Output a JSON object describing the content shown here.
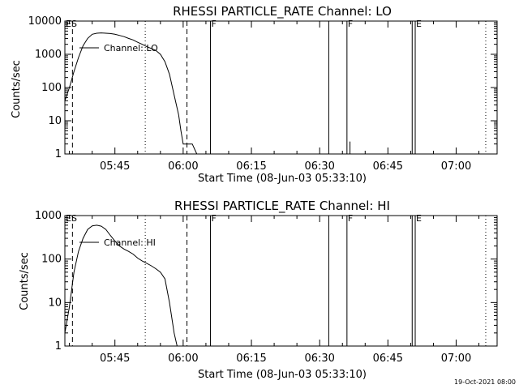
{
  "chart_data": [
    {
      "type": "line",
      "title": "RHESSI PARTICLE_RATE Channel: LO",
      "xlabel": "Start Time (08-Jun-03 05:33:10)",
      "ylabel": "Counts/sec",
      "yscale": "log",
      "xlim": [
        "05:34:00",
        "07:09:00"
      ],
      "ylim": [
        1,
        10000
      ],
      "x_ticks": [
        "05:45",
        "06:00",
        "06:15",
        "06:30",
        "06:45",
        "07:00"
      ],
      "y_ticks": [
        "1",
        "10",
        "100",
        "1000",
        "10000"
      ],
      "series": [
        {
          "name": "Channel: LO",
          "x": [
            "05:34:00",
            "05:35:00",
            "05:36:00",
            "05:37:00",
            "05:38:00",
            "05:39:00",
            "05:40:00",
            "05:41:00",
            "05:42:00",
            "05:43:00",
            "05:44:00",
            "05:45:00",
            "05:46:00",
            "05:47:00",
            "05:48:00",
            "05:49:00",
            "05:50:00",
            "05:51:00",
            "05:52:00",
            "05:53:00",
            "05:54:00",
            "05:55:00",
            "05:56:00",
            "05:57:00",
            "05:58:00",
            "05:59:00",
            "05:59:30",
            "06:00:00",
            "06:01:00",
            "06:02:00",
            "06:03:00"
          ],
          "y": [
            40,
            100,
            300,
            800,
            1800,
            3000,
            4000,
            4300,
            4400,
            4300,
            4200,
            4000,
            3700,
            3400,
            3000,
            2700,
            2300,
            2000,
            1700,
            1500,
            1300,
            1000,
            600,
            250,
            60,
            15,
            5,
            2,
            2,
            2,
            1
          ]
        }
      ],
      "vlines": [
        {
          "x": "05:35:40",
          "style": "dashed"
        },
        {
          "x": "05:51:40",
          "style": "dotted"
        },
        {
          "x": "06:00:50",
          "style": "dashed"
        },
        {
          "x": "06:06:00",
          "style": "solid"
        },
        {
          "x": "06:32:00",
          "style": "solid"
        },
        {
          "x": "06:36:00",
          "style": "solid"
        },
        {
          "x": "06:50:20",
          "style": "solid"
        },
        {
          "x": "06:51:00",
          "style": "solid"
        },
        {
          "x": "07:06:30",
          "style": "dotted"
        }
      ],
      "spikes": [
        {
          "x": "06:36:40",
          "y": 2
        }
      ],
      "markers": [
        {
          "x": "05:34:00",
          "text": "ES"
        },
        {
          "x": "06:06:00",
          "text": "F"
        },
        {
          "x": "06:36:00",
          "text": "F"
        },
        {
          "x": "06:51:00",
          "text": "E"
        }
      ],
      "legend": {
        "label": "Channel: LO",
        "position": "top-left"
      },
      "grid": false
    },
    {
      "type": "line",
      "title": "RHESSI PARTICLE_RATE Channel: HI",
      "xlabel": "Start Time (08-Jun-03 05:33:10)",
      "ylabel": "Counts/sec",
      "yscale": "log",
      "xlim": [
        "05:34:00",
        "07:09:00"
      ],
      "ylim": [
        1,
        1000
      ],
      "x_ticks": [
        "05:45",
        "06:00",
        "06:15",
        "06:30",
        "06:45",
        "07:00"
      ],
      "y_ticks": [
        "1",
        "10",
        "100",
        "1000"
      ],
      "series": [
        {
          "name": "Channel: HI",
          "x": [
            "05:34:00",
            "05:35:00",
            "05:36:00",
            "05:37:00",
            "05:38:00",
            "05:39:00",
            "05:40:00",
            "05:41:00",
            "05:42:00",
            "05:43:00",
            "05:44:00",
            "05:45:00",
            "05:46:00",
            "05:47:00",
            "05:48:00",
            "05:49:00",
            "05:50:00",
            "05:51:00",
            "05:52:00",
            "05:53:00",
            "05:54:00",
            "05:55:00",
            "05:56:00",
            "05:57:00",
            "05:58:00",
            "05:58:40"
          ],
          "y": [
            2,
            8,
            50,
            150,
            300,
            480,
            580,
            600,
            570,
            480,
            350,
            260,
            200,
            170,
            150,
            130,
            105,
            90,
            80,
            70,
            60,
            50,
            35,
            10,
            2,
            1
          ]
        }
      ],
      "vlines": [
        {
          "x": "05:35:40",
          "style": "dashed"
        },
        {
          "x": "05:51:40",
          "style": "dotted"
        },
        {
          "x": "06:00:50",
          "style": "dashed"
        },
        {
          "x": "06:06:00",
          "style": "solid"
        },
        {
          "x": "06:32:00",
          "style": "solid"
        },
        {
          "x": "06:36:00",
          "style": "solid"
        },
        {
          "x": "06:50:20",
          "style": "solid"
        },
        {
          "x": "06:51:00",
          "style": "solid"
        },
        {
          "x": "07:06:30",
          "style": "dotted"
        }
      ],
      "spikes": [],
      "markers": [
        {
          "x": "05:34:00",
          "text": "ES"
        },
        {
          "x": "06:06:00",
          "text": "F"
        },
        {
          "x": "06:36:00",
          "text": "F"
        },
        {
          "x": "06:51:00",
          "text": "E"
        }
      ],
      "legend": {
        "label": "Channel: HI",
        "position": "top-left"
      },
      "grid": false
    }
  ],
  "footer": {
    "timestamp": "19-Oct-2021 08:00"
  }
}
